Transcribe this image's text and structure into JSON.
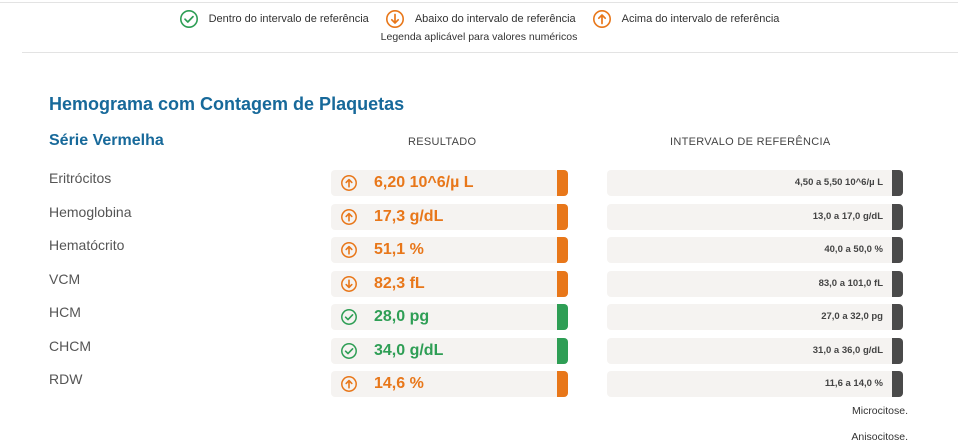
{
  "colors": {
    "above": "#e8771a",
    "below": "#e8771a",
    "within": "#2e9e55",
    "title": "#17699a",
    "ref_bar": "#4a4a4a"
  },
  "legend": {
    "items": [
      {
        "icon": "check-circle-icon",
        "label": "Dentro do intervalo de referência"
      },
      {
        "icon": "arrow-down-circle-icon",
        "label": "Abaixo do intervalo de referência"
      },
      {
        "icon": "arrow-up-circle-icon",
        "label": "Acima do intervalo de referência"
      }
    ],
    "note": "Legenda aplicável para valores numéricos"
  },
  "exam": {
    "title": "Hemograma com Contagem de Plaquetas",
    "series_title": "Série Vermelha",
    "col_result": "RESULTADO",
    "col_reference": "INTERVALO DE REFERÊNCIA",
    "rows": [
      {
        "name": "Eritrócitos",
        "result": "6,20 10^6/µ L",
        "status": "above",
        "reference": "4,50 a 5,50 10^6/µ L"
      },
      {
        "name": "Hemoglobina",
        "result": "17,3 g/dL",
        "status": "above",
        "reference": "13,0 a 17,0 g/dL"
      },
      {
        "name": "Hematócrito",
        "result": "51,1 %",
        "status": "above",
        "reference": "40,0 a 50,0 %"
      },
      {
        "name": "VCM",
        "result": "82,3 fL",
        "status": "below",
        "reference": "83,0 a 101,0 fL"
      },
      {
        "name": "HCM",
        "result": "28,0 pg",
        "status": "within",
        "reference": "27,0 a 32,0 pg"
      },
      {
        "name": "CHCM",
        "result": "34,0 g/dL",
        "status": "within",
        "reference": "31,0 a 36,0 g/dL"
      },
      {
        "name": "RDW",
        "result": "14,6 %",
        "status": "above",
        "reference": "11,6 a 14,0 %"
      }
    ],
    "comments": [
      "Microcitose.",
      "Anisocitose."
    ]
  }
}
